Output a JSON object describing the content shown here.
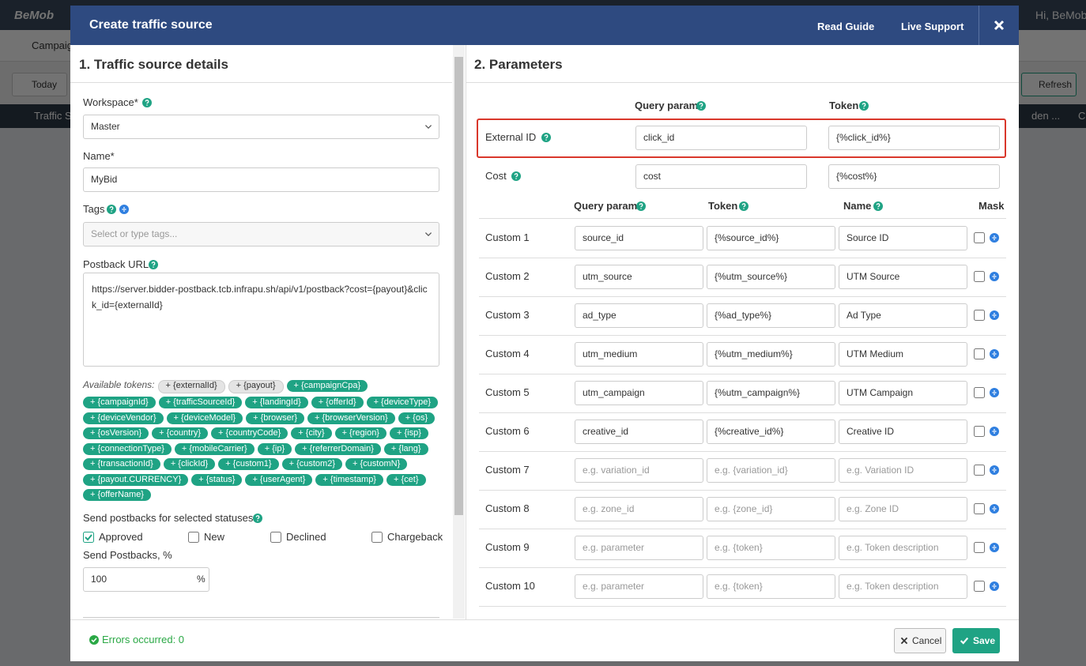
{
  "background": {
    "logo": "BeMob",
    "user": "Hi, BeMob",
    "tab": "Campaig",
    "date_filter": "Today",
    "refresh": "Refresh",
    "column_1": "Traffic S",
    "column_2": "den ...",
    "column_3": "C"
  },
  "modal": {
    "title": "Create traffic source",
    "read_guide": "Read Guide",
    "live_support": "Live Support"
  },
  "details": {
    "heading": "1. Traffic source details",
    "workspace": {
      "label": "Workspace*",
      "value": "Master"
    },
    "name": {
      "label": "Name*",
      "value": "MyBid"
    },
    "tags": {
      "label": "Tags",
      "placeholder": "Select or type tags..."
    },
    "postback": {
      "label": "Postback URL",
      "value": "https://server.bidder-postback.tcb.infrapu.sh/api/v1/postback?cost={payout}&click_id={externalId}"
    },
    "tokens_label": "Available tokens:",
    "tokens": [
      {
        "text": "+ {externalId}",
        "used": true
      },
      {
        "text": "+ {payout}",
        "used": true
      },
      {
        "text": "+ {campaignCpa}",
        "used": false
      },
      {
        "text": "+ {campaignId}",
        "used": false
      },
      {
        "text": "+ {trafficSourceId}",
        "used": false
      },
      {
        "text": "+ {landingId}",
        "used": false
      },
      {
        "text": "+ {offerId}",
        "used": false
      },
      {
        "text": "+ {deviceType}",
        "used": false
      },
      {
        "text": "+ {deviceVendor}",
        "used": false
      },
      {
        "text": "+ {deviceModel}",
        "used": false
      },
      {
        "text": "+ {browser}",
        "used": false
      },
      {
        "text": "+ {browserVersion}",
        "used": false
      },
      {
        "text": "+ {os}",
        "used": false
      },
      {
        "text": "+ {osVersion}",
        "used": false
      },
      {
        "text": "+ {country}",
        "used": false
      },
      {
        "text": "+ {countryCode}",
        "used": false
      },
      {
        "text": "+ {city}",
        "used": false
      },
      {
        "text": "+ {region}",
        "used": false
      },
      {
        "text": "+ {isp}",
        "used": false
      },
      {
        "text": "+ {connectionType}",
        "used": false
      },
      {
        "text": "+ {mobileCarrier}",
        "used": false
      },
      {
        "text": "+ {ip}",
        "used": false
      },
      {
        "text": "+ {referrerDomain}",
        "used": false
      },
      {
        "text": "+ {lang}",
        "used": false
      },
      {
        "text": "+ {transactionId}",
        "used": false
      },
      {
        "text": "+ {clickId}",
        "used": false
      },
      {
        "text": "+ {custom1}",
        "used": false
      },
      {
        "text": "+ {custom2}",
        "used": false
      },
      {
        "text": "+ {customN}",
        "used": false
      },
      {
        "text": "+ {payout.CURRENCY}",
        "used": false
      },
      {
        "text": "+ {status}",
        "used": false
      },
      {
        "text": "+ {userAgent}",
        "used": false
      },
      {
        "text": "+ {timestamp}",
        "used": false
      },
      {
        "text": "+ {cet}",
        "used": false
      },
      {
        "text": "+ {offerName}",
        "used": false
      }
    ],
    "statuses": {
      "label": "Send postbacks for selected statuses",
      "options": [
        {
          "label": "Approved",
          "checked": true
        },
        {
          "label": "New",
          "checked": false
        },
        {
          "label": "Declined",
          "checked": false
        },
        {
          "label": "Chargeback",
          "checked": false
        }
      ]
    },
    "percent": {
      "label": "Send Postbacks, %",
      "value": "100",
      "unit": "%"
    }
  },
  "parameters": {
    "heading": "2. Parameters",
    "columns": {
      "query": "Query param",
      "token": "Token"
    },
    "external": {
      "label": "External ID",
      "query": "click_id",
      "token": "{%click_id%}"
    },
    "cost": {
      "label": "Cost",
      "query": "cost",
      "token": "{%cost%}"
    },
    "custom_columns": {
      "query": "Query param",
      "token": "Token",
      "name": "Name",
      "mask": "Mask"
    },
    "custom": [
      {
        "label": "Custom 1",
        "query": "source_id",
        "token": "{%source_id%}",
        "name": "Source ID",
        "placeholder": false
      },
      {
        "label": "Custom 2",
        "query": "utm_source",
        "token": "{%utm_source%}",
        "name": "UTM Source",
        "placeholder": false
      },
      {
        "label": "Custom 3",
        "query": "ad_type",
        "token": "{%ad_type%}",
        "name": "Ad Type",
        "placeholder": false
      },
      {
        "label": "Custom 4",
        "query": "utm_medium",
        "token": "{%utm_medium%}",
        "name": "UTM Medium",
        "placeholder": false
      },
      {
        "label": "Custom 5",
        "query": "utm_campaign",
        "token": "{%utm_campaign%}",
        "name": "UTM Campaign",
        "placeholder": false
      },
      {
        "label": "Custom 6",
        "query": "creative_id",
        "token": "{%creative_id%}",
        "name": "Creative ID",
        "placeholder": false
      },
      {
        "label": "Custom 7",
        "query": "e.g. variation_id",
        "token": "e.g. {variation_id}",
        "name": "e.g. Variation ID",
        "placeholder": true
      },
      {
        "label": "Custom 8",
        "query": "e.g. zone_id",
        "token": "e.g. {zone_id}",
        "name": "e.g. Zone ID",
        "placeholder": true
      },
      {
        "label": "Custom 9",
        "query": "e.g. parameter",
        "token": "e.g. {token}",
        "name": "e.g. Token description",
        "placeholder": true
      },
      {
        "label": "Custom 10",
        "query": "e.g. parameter",
        "token": "e.g. {token}",
        "name": "e.g. Token description",
        "placeholder": true
      }
    ]
  },
  "footer": {
    "errors": "Errors occurred: 0",
    "cancel": "Cancel",
    "save": "Save"
  }
}
